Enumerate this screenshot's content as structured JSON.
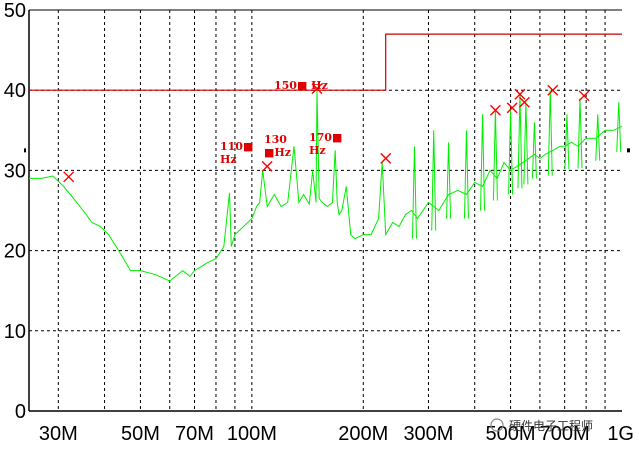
{
  "chart_data": {
    "type": "line",
    "x_scale": "log",
    "xlim": [
      25,
      1000
    ],
    "ylim": [
      0,
      50
    ],
    "grid": true,
    "x_ticks": [
      {
        "value": 30,
        "label": "30M"
      },
      {
        "value": 50,
        "label": "50M"
      },
      {
        "value": 70,
        "label": "70M"
      },
      {
        "value": 100,
        "label": "100M"
      },
      {
        "value": 200,
        "label": "200M"
      },
      {
        "value": 300,
        "label": "300M"
      },
      {
        "value": 500,
        "label": "500M"
      },
      {
        "value": 700,
        "label": "700M"
      },
      {
        "value": 1000,
        "label": "1G"
      }
    ],
    "x_minor_grid": [
      40,
      60,
      80,
      90,
      400,
      600,
      800,
      900
    ],
    "y_ticks": [
      0,
      10,
      20,
      30,
      40,
      50
    ],
    "series": [
      {
        "color": "#00ee00",
        "x": [
          25,
          27,
          29,
          31,
          33,
          35,
          37,
          39,
          41,
          43,
          45,
          47,
          50,
          55,
          60,
          65,
          68,
          70,
          73,
          76,
          80,
          84,
          86,
          87,
          88,
          90,
          95,
          100,
          103,
          105,
          107,
          110,
          115,
          120,
          125,
          130,
          134,
          138,
          143,
          146,
          149,
          150,
          152,
          155,
          160,
          165,
          168,
          170,
          172,
          175,
          180,
          185,
          190,
          200,
          210,
          220,
          225,
          230,
          240,
          250,
          260,
          270,
          280,
          300,
          320,
          340,
          360,
          380,
          400,
          420,
          440,
          460,
          480,
          500,
          520,
          540,
          560,
          580,
          600,
          620,
          650,
          680,
          700,
          730,
          760,
          800,
          850,
          900,
          950,
          1000
        ],
        "y": [
          29,
          29,
          29.3,
          28,
          26.5,
          25,
          23.5,
          23,
          22,
          20.5,
          19,
          17.5,
          17.5,
          17,
          16.2,
          17.5,
          16.8,
          17.5,
          18,
          18.5,
          19,
          20.5,
          25,
          27.2,
          20.5,
          22,
          23,
          24,
          25.5,
          26,
          30,
          25.5,
          27,
          25.5,
          26,
          33,
          26,
          27,
          25.8,
          30,
          26,
          40,
          26.5,
          26,
          25.5,
          26,
          32.5,
          26,
          24.5,
          25,
          28,
          22,
          21.5,
          22,
          22,
          24,
          31,
          22,
          23.5,
          23,
          24.5,
          25,
          24,
          26,
          25,
          27,
          27.5,
          27,
          28.5,
          28,
          30,
          29,
          31,
          30,
          30.5,
          31,
          31.5,
          32,
          31.5,
          32,
          32.5,
          33,
          33,
          33.5,
          33,
          34,
          34,
          35,
          35,
          35.5
        ],
        "spike_peaks": [
          {
            "x": 275,
            "y": 33
          },
          {
            "x": 310,
            "y": 35
          },
          {
            "x": 340,
            "y": 33.5
          },
          {
            "x": 380,
            "y": 35
          },
          {
            "x": 420,
            "y": 37
          },
          {
            "x": 455,
            "y": 37.5
          },
          {
            "x": 500,
            "y": 37.5
          },
          {
            "x": 530,
            "y": 39.5
          },
          {
            "x": 550,
            "y": 38.5
          },
          {
            "x": 580,
            "y": 36
          },
          {
            "x": 640,
            "y": 40
          },
          {
            "x": 710,
            "y": 37
          },
          {
            "x": 770,
            "y": 39
          },
          {
            "x": 860,
            "y": 37
          },
          {
            "x": 980,
            "y": 38.5
          }
        ]
      },
      {
        "color": "#cc0000",
        "step": true,
        "x": [
          25,
          230,
          230,
          1000
        ],
        "y": [
          40,
          40,
          47,
          47
        ]
      }
    ],
    "markers": [
      {
        "x": 32,
        "y": 29.2
      },
      {
        "x": 110,
        "y": 30.5
      },
      {
        "x": 150,
        "y": 40.2
      },
      {
        "x": 230,
        "y": 31.5
      },
      {
        "x": 455,
        "y": 37.5
      },
      {
        "x": 505,
        "y": 37.8
      },
      {
        "x": 530,
        "y": 39.5
      },
      {
        "x": 545,
        "y": 38.5
      },
      {
        "x": 650,
        "y": 40
      },
      {
        "x": 790,
        "y": 39.3
      }
    ],
    "annotations": [
      {
        "lines": [
          "110■",
          "Hz"
        ]
      },
      {
        "lines": [
          "130",
          "■Hz"
        ]
      },
      {
        "lines": [
          "150■ Hz"
        ]
      },
      {
        "lines": [
          "170■",
          "Hz"
        ]
      }
    ]
  },
  "watermark": "硬件电子工程师",
  "colors": {
    "trace": "#00ee00",
    "limit": "#cc0000",
    "marker": "#ff0000",
    "annotation": "#e00000"
  }
}
